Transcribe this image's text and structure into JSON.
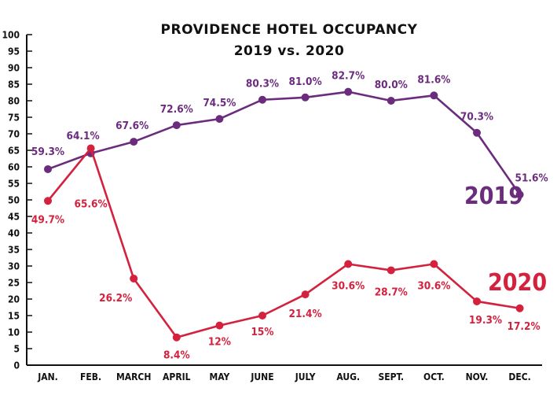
{
  "chart_data": {
    "type": "line",
    "title": "PROVIDENCE HOTEL OCCUPANCY",
    "subtitle": "2019 vs. 2020",
    "categories": [
      "JAN.",
      "FEB.",
      "MARCH",
      "APRIL",
      "MAY",
      "JUNE",
      "JULY",
      "AUG.",
      "SEPT.",
      "OCT.",
      "NOV.",
      "DEC."
    ],
    "ylim": [
      0,
      100
    ],
    "yticks": [
      0,
      5,
      10,
      15,
      20,
      25,
      30,
      35,
      40,
      45,
      50,
      55,
      60,
      65,
      70,
      75,
      80,
      85,
      90,
      95,
      100
    ],
    "grid": false,
    "series": [
      {
        "name": "2019",
        "color": "#6b2c7e",
        "values": [
          59.3,
          64.1,
          67.6,
          72.6,
          74.5,
          80.3,
          81.0,
          82.7,
          80.0,
          81.6,
          70.3,
          51.6
        ],
        "labels": [
          "59.3%",
          "64.1%",
          "67.6%",
          "72.6%",
          "74.5%",
          "80.3%",
          "81.0%",
          "82.7%",
          "80.0%",
          "81.6%",
          "70.3%",
          "51.6%"
        ]
      },
      {
        "name": "2020",
        "color": "#d4213d",
        "values": [
          49.7,
          65.6,
          26.2,
          8.4,
          12,
          15,
          21.4,
          30.6,
          28.7,
          30.6,
          19.3,
          17.2
        ],
        "labels": [
          "49.7%",
          "65.6%",
          "26.2%",
          "8.4%",
          "12%",
          "15%",
          "21.4%",
          "30.6%",
          "28.7%",
          "30.6%",
          "19.3%",
          "17.2%"
        ]
      }
    ]
  }
}
